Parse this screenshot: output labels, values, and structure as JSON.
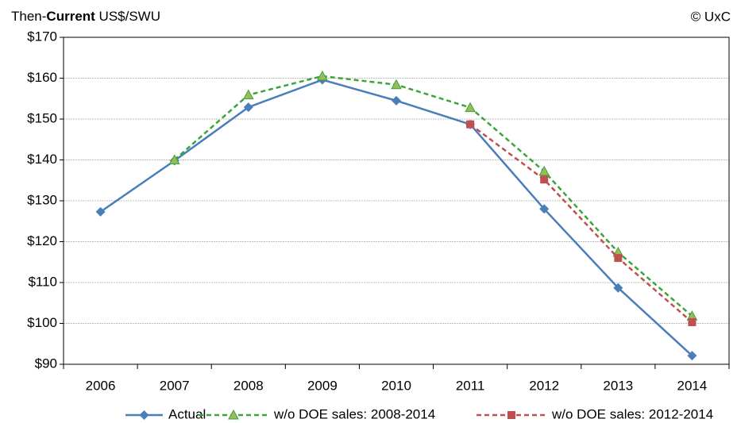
{
  "chart_data": {
    "type": "line",
    "subtitle_parts": [
      "Then-",
      "Current",
      " US$/SWU"
    ],
    "credit": "© UxC",
    "categories": [
      "2006",
      "2007",
      "2008",
      "2009",
      "2010",
      "2011",
      "2012",
      "2013",
      "2014"
    ],
    "series": [
      {
        "name": "Actual",
        "color": "#4a7ebb",
        "dashed": false,
        "marker": "diamond",
        "values": [
          127.3,
          139.8,
          152.9,
          159.6,
          154.5,
          148.7,
          128.0,
          108.7,
          92.1
        ]
      },
      {
        "name": "w/o DOE sales: 2008-2014",
        "color": "#3aa53a",
        "dashed": true,
        "marker": "triangle",
        "values": [
          null,
          140.0,
          155.9,
          160.5,
          158.4,
          152.8,
          137.2,
          117.4,
          101.8
        ]
      },
      {
        "name": "w/o DOE sales: 2012-2014",
        "color": "#c0504d",
        "dashed": true,
        "marker": "square",
        "values": [
          null,
          null,
          null,
          null,
          null,
          148.7,
          135.2,
          116.0,
          100.3
        ]
      }
    ],
    "ylim": [
      90,
      170
    ],
    "yticks": [
      {
        "value": 90,
        "label": "$90"
      },
      {
        "value": 100,
        "label": "$100"
      },
      {
        "value": 110,
        "label": "$110"
      },
      {
        "value": 120,
        "label": "$120"
      },
      {
        "value": 130,
        "label": "$130"
      },
      {
        "value": 140,
        "label": "$140"
      },
      {
        "value": 150,
        "label": "$150"
      },
      {
        "value": 160,
        "label": "$160"
      },
      {
        "value": 170,
        "label": "$170"
      }
    ],
    "grid": true,
    "legend": "bottom"
  }
}
